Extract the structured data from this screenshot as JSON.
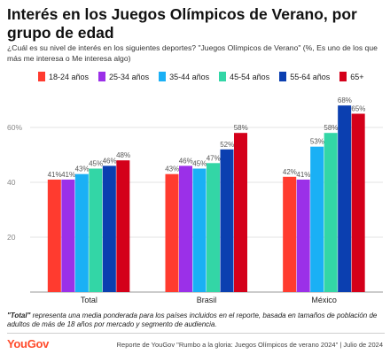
{
  "title": "Interés en los Juegos Olímpicos de Verano, por grupo de edad",
  "subtitle": "¿Cuál es su nivel de interés en los siguientes deportes? \"Juegos Olímpicos de Verano\" (%, Es uno de los que más me interesa o Me interesa algo)",
  "footnote": {
    "bold": "\"Total\"",
    "text": " representa una media ponderada para los países incluidos en el reporte, basada en tamaños de población de adultos de más de 18 años por mercado y segmento de audiencia."
  },
  "brand": "YouGov",
  "source": "Reporte de YouGov \"Rumbo a la gloria: Juegos Olímpicos de verano 2024\" | Julio de 2024",
  "chart_data": {
    "type": "bar",
    "categories": [
      "Total",
      "Brasil",
      "México"
    ],
    "series": [
      {
        "name": "18-24 años",
        "color": "#ff3b2f",
        "values": [
          41,
          43,
          42
        ]
      },
      {
        "name": "25-34 años",
        "color": "#9b30e8",
        "values": [
          41,
          46,
          41
        ]
      },
      {
        "name": "35-44 años",
        "color": "#1ab0f5",
        "values": [
          43,
          45,
          53
        ]
      },
      {
        "name": "45-54 años",
        "color": "#33d6a6",
        "values": [
          45,
          47,
          58
        ]
      },
      {
        "name": "55-64 años",
        "color": "#0b3fb0",
        "values": [
          46,
          52,
          68
        ]
      },
      {
        "name": "65+",
        "color": "#d4001a",
        "values": [
          48,
          58,
          65
        ]
      }
    ],
    "yticks": [
      20,
      40,
      "60%"
    ],
    "ylim": [
      0,
      72
    ],
    "grid": true,
    "legend": "top"
  }
}
